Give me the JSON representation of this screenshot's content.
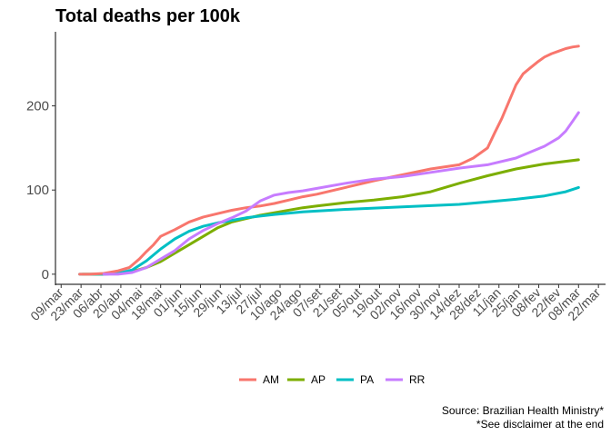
{
  "chart_data": {
    "type": "line",
    "title": "Total deaths per 100k",
    "xlabel": "",
    "ylabel": "",
    "x_range_days": [
      -4,
      383
    ],
    "ylim": [
      -12,
      288
    ],
    "y_ticks": [
      0,
      100,
      200
    ],
    "x_tick_labels": [
      "09/mar",
      "23/mar",
      "06/abr",
      "20/abr",
      "04/mai",
      "18/mai",
      "01/jun",
      "15/jun",
      "29/jun",
      "13/jul",
      "27/jul",
      "10/ago",
      "24/ago",
      "07/set",
      "21/set",
      "05/out",
      "19/out",
      "02/nov",
      "16/nov",
      "30/nov",
      "14/dez",
      "28/dez",
      "11/jan",
      "25/jan",
      "08/fev",
      "22/fev",
      "08/mar",
      "22/mar"
    ],
    "x_tick_step_days": 14,
    "grid": false,
    "legend": "bottom",
    "series": [
      {
        "name": "AM",
        "color": "#F8766D",
        "x": [
          13,
          20,
          30,
          40,
          48,
          55,
          60,
          65,
          70,
          80,
          90,
          100,
          110,
          120,
          130,
          140,
          150,
          160,
          170,
          180,
          200,
          220,
          240,
          260,
          280,
          290,
          300,
          305,
          310,
          315,
          320,
          325,
          330,
          335,
          340,
          345,
          350,
          355,
          360,
          364
        ],
        "y": [
          0,
          0,
          1,
          4,
          8,
          18,
          27,
          35,
          45,
          53,
          62,
          68,
          72,
          76,
          79,
          81,
          84,
          88,
          92,
          95,
          103,
          111,
          118,
          125,
          130,
          138,
          150,
          168,
          185,
          205,
          225,
          238,
          245,
          252,
          258,
          262,
          265,
          268,
          270,
          271
        ]
      },
      {
        "name": "AP",
        "color": "#7CAE00",
        "x": [
          15,
          30,
          40,
          50,
          60,
          70,
          80,
          90,
          100,
          110,
          120,
          130,
          140,
          150,
          170,
          180,
          200,
          220,
          240,
          260,
          280,
          300,
          320,
          340,
          364
        ],
        "y": [
          0,
          0,
          1,
          3,
          8,
          15,
          25,
          35,
          45,
          55,
          62,
          66,
          70,
          73,
          79,
          81,
          85,
          88,
          92,
          98,
          108,
          117,
          125,
          131,
          136
        ]
      },
      {
        "name": "PA",
        "color": "#00BFC4",
        "x": [
          13,
          30,
          40,
          50,
          60,
          70,
          80,
          90,
          100,
          110,
          120,
          130,
          140,
          150,
          170,
          200,
          240,
          280,
          300,
          320,
          340,
          355,
          364
        ],
        "y": [
          0,
          0,
          1,
          5,
          16,
          30,
          42,
          51,
          57,
          61,
          64,
          67,
          69,
          71,
          74,
          77,
          80,
          83,
          86,
          89,
          93,
          98,
          103
        ]
      },
      {
        "name": "RR",
        "color": "#C77CFF",
        "x": [
          30,
          40,
          50,
          60,
          70,
          80,
          90,
          100,
          110,
          120,
          130,
          140,
          150,
          160,
          170,
          180,
          200,
          220,
          240,
          260,
          280,
          300,
          320,
          330,
          340,
          350,
          355,
          360,
          364
        ],
        "y": [
          0,
          0,
          2,
          8,
          18,
          28,
          42,
          52,
          60,
          67,
          75,
          87,
          94,
          97,
          99,
          102,
          108,
          113,
          116,
          121,
          126,
          130,
          138,
          145,
          152,
          162,
          170,
          182,
          192
        ]
      }
    ],
    "caption": [
      "Source: Brazilian Health Ministry*",
      "*See disclaimer at the end"
    ]
  }
}
